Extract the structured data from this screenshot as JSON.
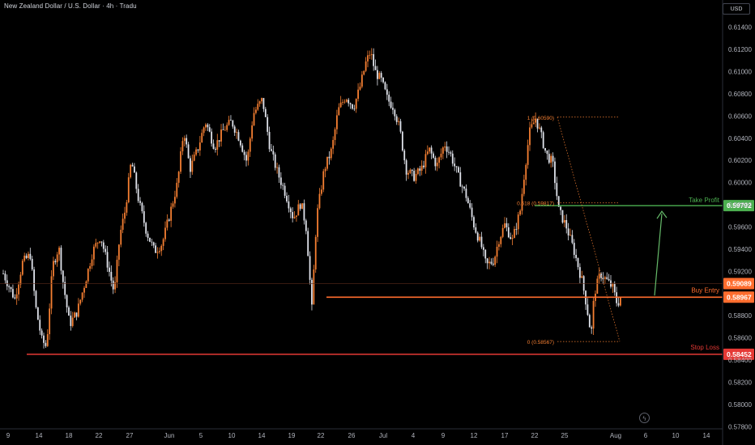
{
  "header": {
    "title": "New Zealand Dollar / U.S. Dollar · 4h · Tradu",
    "currency": "USD"
  },
  "chart_data": {
    "type": "candlestick",
    "symbol": "NZDUSD",
    "timeframe": "4h",
    "ylim": [
      0.5778,
      0.615
    ],
    "y_ticks": [
      "0.61400",
      "0.61200",
      "0.61000",
      "0.60800",
      "0.60600",
      "0.60400",
      "0.60200",
      "0.60000",
      "0.59800",
      "0.59600",
      "0.59400",
      "0.59200",
      "0.58800",
      "0.58600",
      "0.58400",
      "0.58200",
      "0.58000",
      "0.57800"
    ],
    "x_ticks": [
      "9",
      "14",
      "18",
      "22",
      "27",
      "Jun",
      "5",
      "10",
      "14",
      "19",
      "22",
      "26",
      "Jul",
      "4",
      "9",
      "12",
      "17",
      "22",
      "25",
      "Aug",
      "6",
      "10",
      "14"
    ],
    "price_path": [
      [
        0,
        0.5918
      ],
      [
        1.5,
        0.5895
      ],
      [
        2.5,
        0.5928
      ],
      [
        3.5,
        0.5935
      ],
      [
        4.2,
        0.5888
      ],
      [
        5,
        0.5858
      ],
      [
        5.6,
        0.5852
      ],
      [
        6.4,
        0.5925
      ],
      [
        7.2,
        0.5942
      ],
      [
        7.8,
        0.5908
      ],
      [
        8.6,
        0.5872
      ],
      [
        9.6,
        0.5884
      ],
      [
        10.6,
        0.591
      ],
      [
        11.6,
        0.5938
      ],
      [
        12.6,
        0.5952
      ],
      [
        13.6,
        0.5924
      ],
      [
        14.4,
        0.59
      ],
      [
        15.1,
        0.5952
      ],
      [
        15.8,
        0.5975
      ],
      [
        16.6,
        0.602
      ],
      [
        17.6,
        0.5982
      ],
      [
        18.6,
        0.5955
      ],
      [
        19.6,
        0.5938
      ],
      [
        20.6,
        0.5945
      ],
      [
        21.6,
        0.5972
      ],
      [
        22.6,
        0.6
      ],
      [
        23.4,
        0.6048
      ],
      [
        24.2,
        0.6012
      ],
      [
        25.2,
        0.603
      ],
      [
        26.2,
        0.6055
      ],
      [
        27.4,
        0.6032
      ],
      [
        28.6,
        0.6048
      ],
      [
        29.6,
        0.6055
      ],
      [
        30.6,
        0.604
      ],
      [
        31.6,
        0.6018
      ],
      [
        32.4,
        0.6062
      ],
      [
        33.6,
        0.6075
      ],
      [
        34.6,
        0.603
      ],
      [
        35.6,
        0.6008
      ],
      [
        36.6,
        0.599
      ],
      [
        37.6,
        0.5968
      ],
      [
        38.6,
        0.5982
      ],
      [
        39.3,
        0.5958
      ],
      [
        40.0,
        0.5886
      ],
      [
        40.6,
        0.5968
      ],
      [
        41.6,
        0.6012
      ],
      [
        42.6,
        0.603
      ],
      [
        43.4,
        0.6065
      ],
      [
        44.4,
        0.6078
      ],
      [
        45.4,
        0.6068
      ],
      [
        46.2,
        0.6085
      ],
      [
        47.0,
        0.6108
      ],
      [
        47.6,
        0.6118
      ],
      [
        48.2,
        0.61
      ],
      [
        49.0,
        0.6092
      ],
      [
        49.8,
        0.6075
      ],
      [
        50.6,
        0.6068
      ],
      [
        51.4,
        0.6048
      ],
      [
        52.2,
        0.6012
      ],
      [
        53.2,
        0.6005
      ],
      [
        54.2,
        0.6012
      ],
      [
        55.2,
        0.603
      ],
      [
        56.2,
        0.6015
      ],
      [
        57.2,
        0.6035
      ],
      [
        58.0,
        0.6025
      ],
      [
        59.0,
        0.6005
      ],
      [
        60.0,
        0.5988
      ],
      [
        61.0,
        0.5962
      ],
      [
        62.0,
        0.5942
      ],
      [
        62.6,
        0.5925
      ],
      [
        63.6,
        0.593
      ],
      [
        64.2,
        0.5948
      ],
      [
        65.0,
        0.5962
      ],
      [
        66.0,
        0.5948
      ],
      [
        67.0,
        0.5975
      ],
      [
        67.6,
        0.6012
      ],
      [
        68.2,
        0.6045
      ],
      [
        69.0,
        0.6058
      ],
      [
        69.6,
        0.6045
      ],
      [
        70.4,
        0.6025
      ],
      [
        71.2,
        0.6018
      ],
      [
        72.0,
        0.5975
      ],
      [
        73.0,
        0.596
      ],
      [
        74.0,
        0.5938
      ],
      [
        75.0,
        0.5912
      ],
      [
        75.6,
        0.589
      ],
      [
        76.2,
        0.5862
      ],
      [
        76.6,
        0.59
      ],
      [
        77.4,
        0.5918
      ],
      [
        78.2,
        0.5912
      ],
      [
        79.0,
        0.5905
      ],
      [
        79.6,
        0.589
      ],
      [
        80.2,
        0.59
      ]
    ],
    "annotations": {
      "take_profit": {
        "label": "Take Profit",
        "price": 0.59792,
        "price_label": "0.59792"
      },
      "buy_entry": {
        "label": "Buy Entry",
        "price": 0.58967,
        "price_label": "0.58967"
      },
      "stop_loss": {
        "label": "Stop Loss",
        "price": 0.58452,
        "price_label": "0.58452"
      },
      "current_price": {
        "price": 0.59089,
        "price_label": "0.59089"
      },
      "fib_levels": [
        {
          "label": "1 (0.60590)",
          "price": 0.6059
        },
        {
          "label": "0.618 (0.59817)",
          "price": 0.59817
        },
        {
          "label": "0 (0.58567)",
          "price": 0.58567
        }
      ]
    },
    "colors": {
      "up": "#f57f32",
      "down": "#e0e3eb",
      "take_profit": "#4caf50",
      "buy_entry": "#ff6d2e",
      "stop_loss": "#e53935",
      "fib": "#f57f32",
      "arrow": "#66bb6a"
    }
  }
}
